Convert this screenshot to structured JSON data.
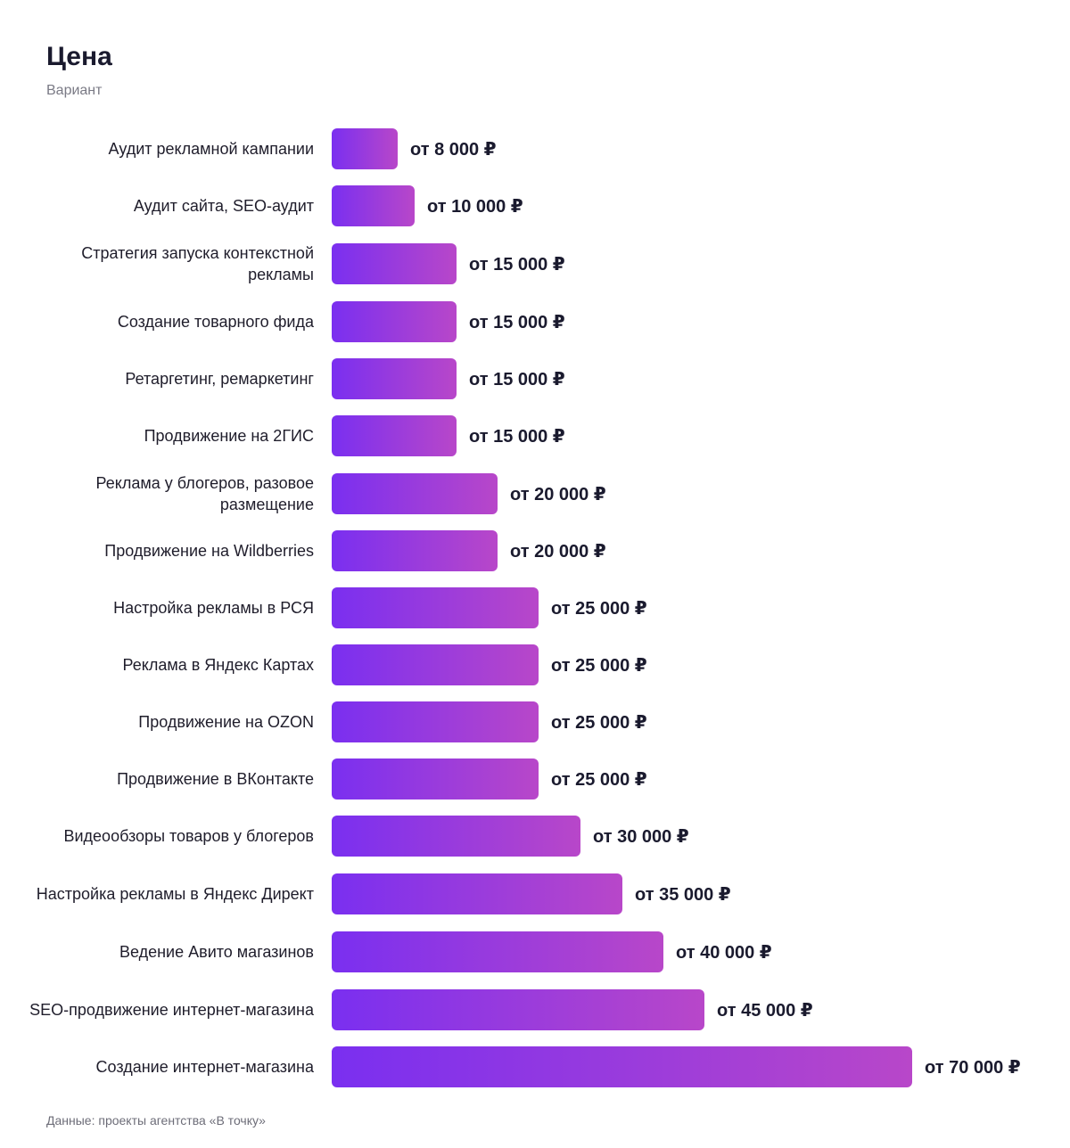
{
  "header": {
    "title": "Цена",
    "subtitle": "Вариант"
  },
  "footer": {
    "source": "Данные: проекты агентства «В точку»"
  },
  "colors": {
    "bar_start": "#7a2ff0",
    "bar_end": "#b847c9"
  },
  "chart_data": {
    "type": "bar",
    "orientation": "horizontal",
    "title": "Цена",
    "subtitle": "Вариант",
    "grid": false,
    "legend": "none",
    "xlim": [
      0,
      70000
    ],
    "categories": [
      "Аудит рекламной кампании",
      "Аудит сайта, SEO-аудит",
      "Стратегия запуска контекстной рекламы",
      "Создание товарного фида",
      "Ретаргетинг, ремаркетинг",
      "Продвижение на 2ГИС",
      "Реклама у блогеров, разовое размещение",
      "Продвижение на Wildberries",
      "Настройка рекламы в РСЯ",
      "Реклама в Яндекс Картах",
      "Продвижение на OZON",
      "Продвижение в ВКонтакте",
      "Видеообзоры товаров у блогеров",
      "Настройка рекламы в Яндекс Директ",
      "Ведение Авито магазинов",
      "SEO-продвижение интернет-магазина",
      "Создание интернет-магазина"
    ],
    "values": [
      8000,
      10000,
      15000,
      15000,
      15000,
      15000,
      20000,
      20000,
      25000,
      25000,
      25000,
      25000,
      30000,
      35000,
      40000,
      45000,
      70000
    ],
    "value_labels": [
      "от 8 000 ₽",
      "от 10 000 ₽",
      "от 15 000 ₽",
      "от 15 000 ₽",
      "от 15 000 ₽",
      "от 15 000 ₽",
      "от 20 000 ₽",
      "от 20 000 ₽",
      "от 25 000 ₽",
      "от 25 000 ₽",
      "от 25 000 ₽",
      "от 25 000 ₽",
      "от 30 000 ₽",
      "от 35 000 ₽",
      "от 40 000 ₽",
      "от 45 000 ₽",
      "от 70 000 ₽"
    ]
  }
}
